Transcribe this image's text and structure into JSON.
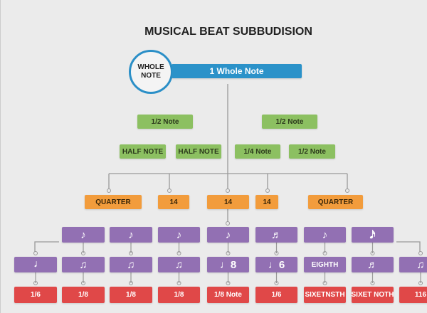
{
  "title": "MUSICAL BEAT SUBBUDISION",
  "root": {
    "circle_label_1": "WHOLE",
    "circle_label_2": "NOTE",
    "bar_label": "1 Whole Note"
  },
  "green_row1": [
    "1/2 Note",
    "1/2 Note"
  ],
  "green_row2": [
    "HALF NOTE",
    "HALF NOTE",
    "1/4 Note",
    "1/2 Note"
  ],
  "orange_row": [
    "QUARTER",
    "14",
    "14",
    "14",
    "QUARTER"
  ],
  "purple_row1": [
    "♪",
    "♪",
    "♪",
    "♪",
    "♬",
    "♪",
    "𝅘𝅥𝅯"
  ],
  "purple_row2": [
    "𝅗𝅥",
    "♫",
    "♫",
    "♫",
    "♩8",
    "♩6",
    "EIGHTH",
    "♬",
    "♫"
  ],
  "red_row": [
    "1/6",
    "1/8",
    "1/8",
    "1/8",
    "1/8 Note",
    "1/6",
    "SIXETNSTH",
    "SIXET NOTH",
    "116"
  ],
  "colors": {
    "blue": "#2b92c9",
    "green": "#8cc061",
    "orange": "#f29c3c",
    "purple": "#9270b3",
    "red": "#e04848"
  }
}
